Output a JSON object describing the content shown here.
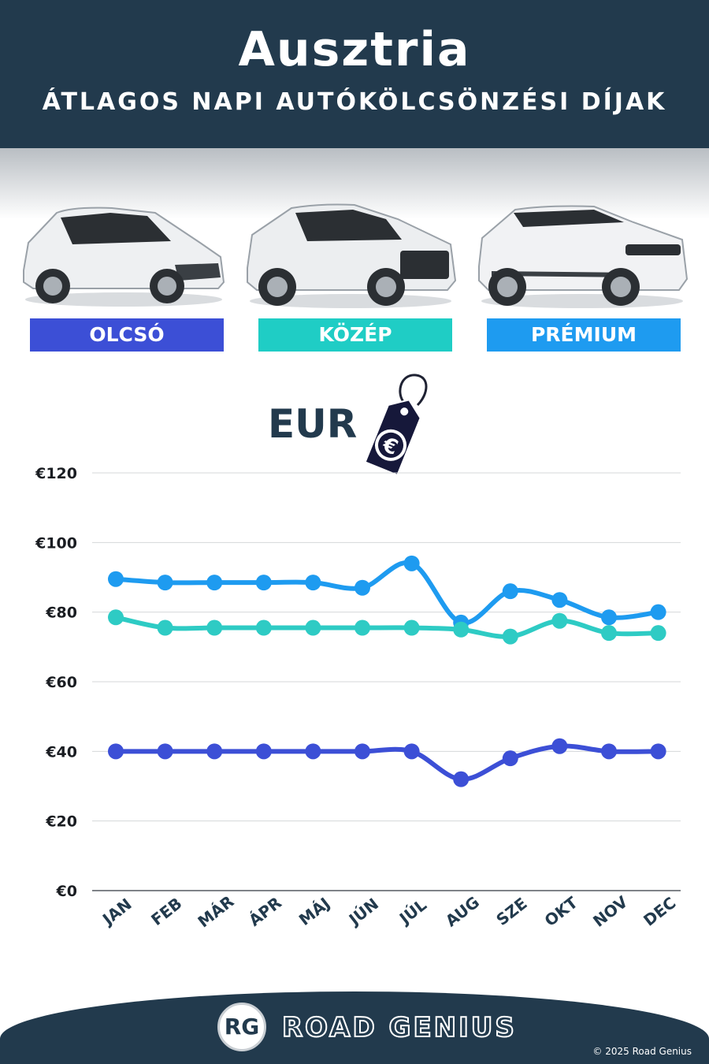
{
  "header": {
    "title": "Ausztria",
    "subtitle": "ÁTLAGOS NAPI AUTÓKÖLCSÖNZÉSI DÍJAK"
  },
  "categories": [
    {
      "label": "OLCSÓ",
      "color": "#3c4fd6"
    },
    {
      "label": "KÖZÉP",
      "color": "#1fcdc5"
    },
    {
      "label": "PRÉMIUM",
      "color": "#1e9bf0"
    }
  ],
  "currency_label": "EUR",
  "currency_symbol": "€",
  "chart_data": {
    "type": "line",
    "categories": [
      "JAN",
      "FEB",
      "MÁR",
      "ÁPR",
      "MÁJ",
      "JÚN",
      "JÚL",
      "AUG",
      "SZE",
      "OKT",
      "NOV",
      "DEC"
    ],
    "series": [
      {
        "name": "PRÉMIUM",
        "color": "#1e9bf0",
        "values": [
          89.5,
          88.5,
          88.5,
          88.5,
          88.5,
          87,
          94,
          77,
          86,
          83.5,
          78.5,
          80
        ]
      },
      {
        "name": "KÖZÉP",
        "color": "#2ecbc4",
        "values": [
          78.5,
          75.5,
          75.5,
          75.5,
          75.5,
          75.5,
          75.5,
          75,
          73,
          77.5,
          74,
          74
        ]
      },
      {
        "name": "OLCSÓ",
        "color": "#3c4fd6",
        "values": [
          40,
          40,
          40,
          40,
          40,
          40,
          40,
          32,
          38,
          41.5,
          40,
          40
        ]
      }
    ],
    "yticks": [
      "€0",
      "€20",
      "€40",
      "€60",
      "€80",
      "€100",
      "€120"
    ],
    "ylim": [
      0,
      120
    ],
    "grid": true
  },
  "footer": {
    "logo": "RG",
    "brand": "ROAD GENIUS",
    "copyright": "© 2025 Road Genius"
  }
}
